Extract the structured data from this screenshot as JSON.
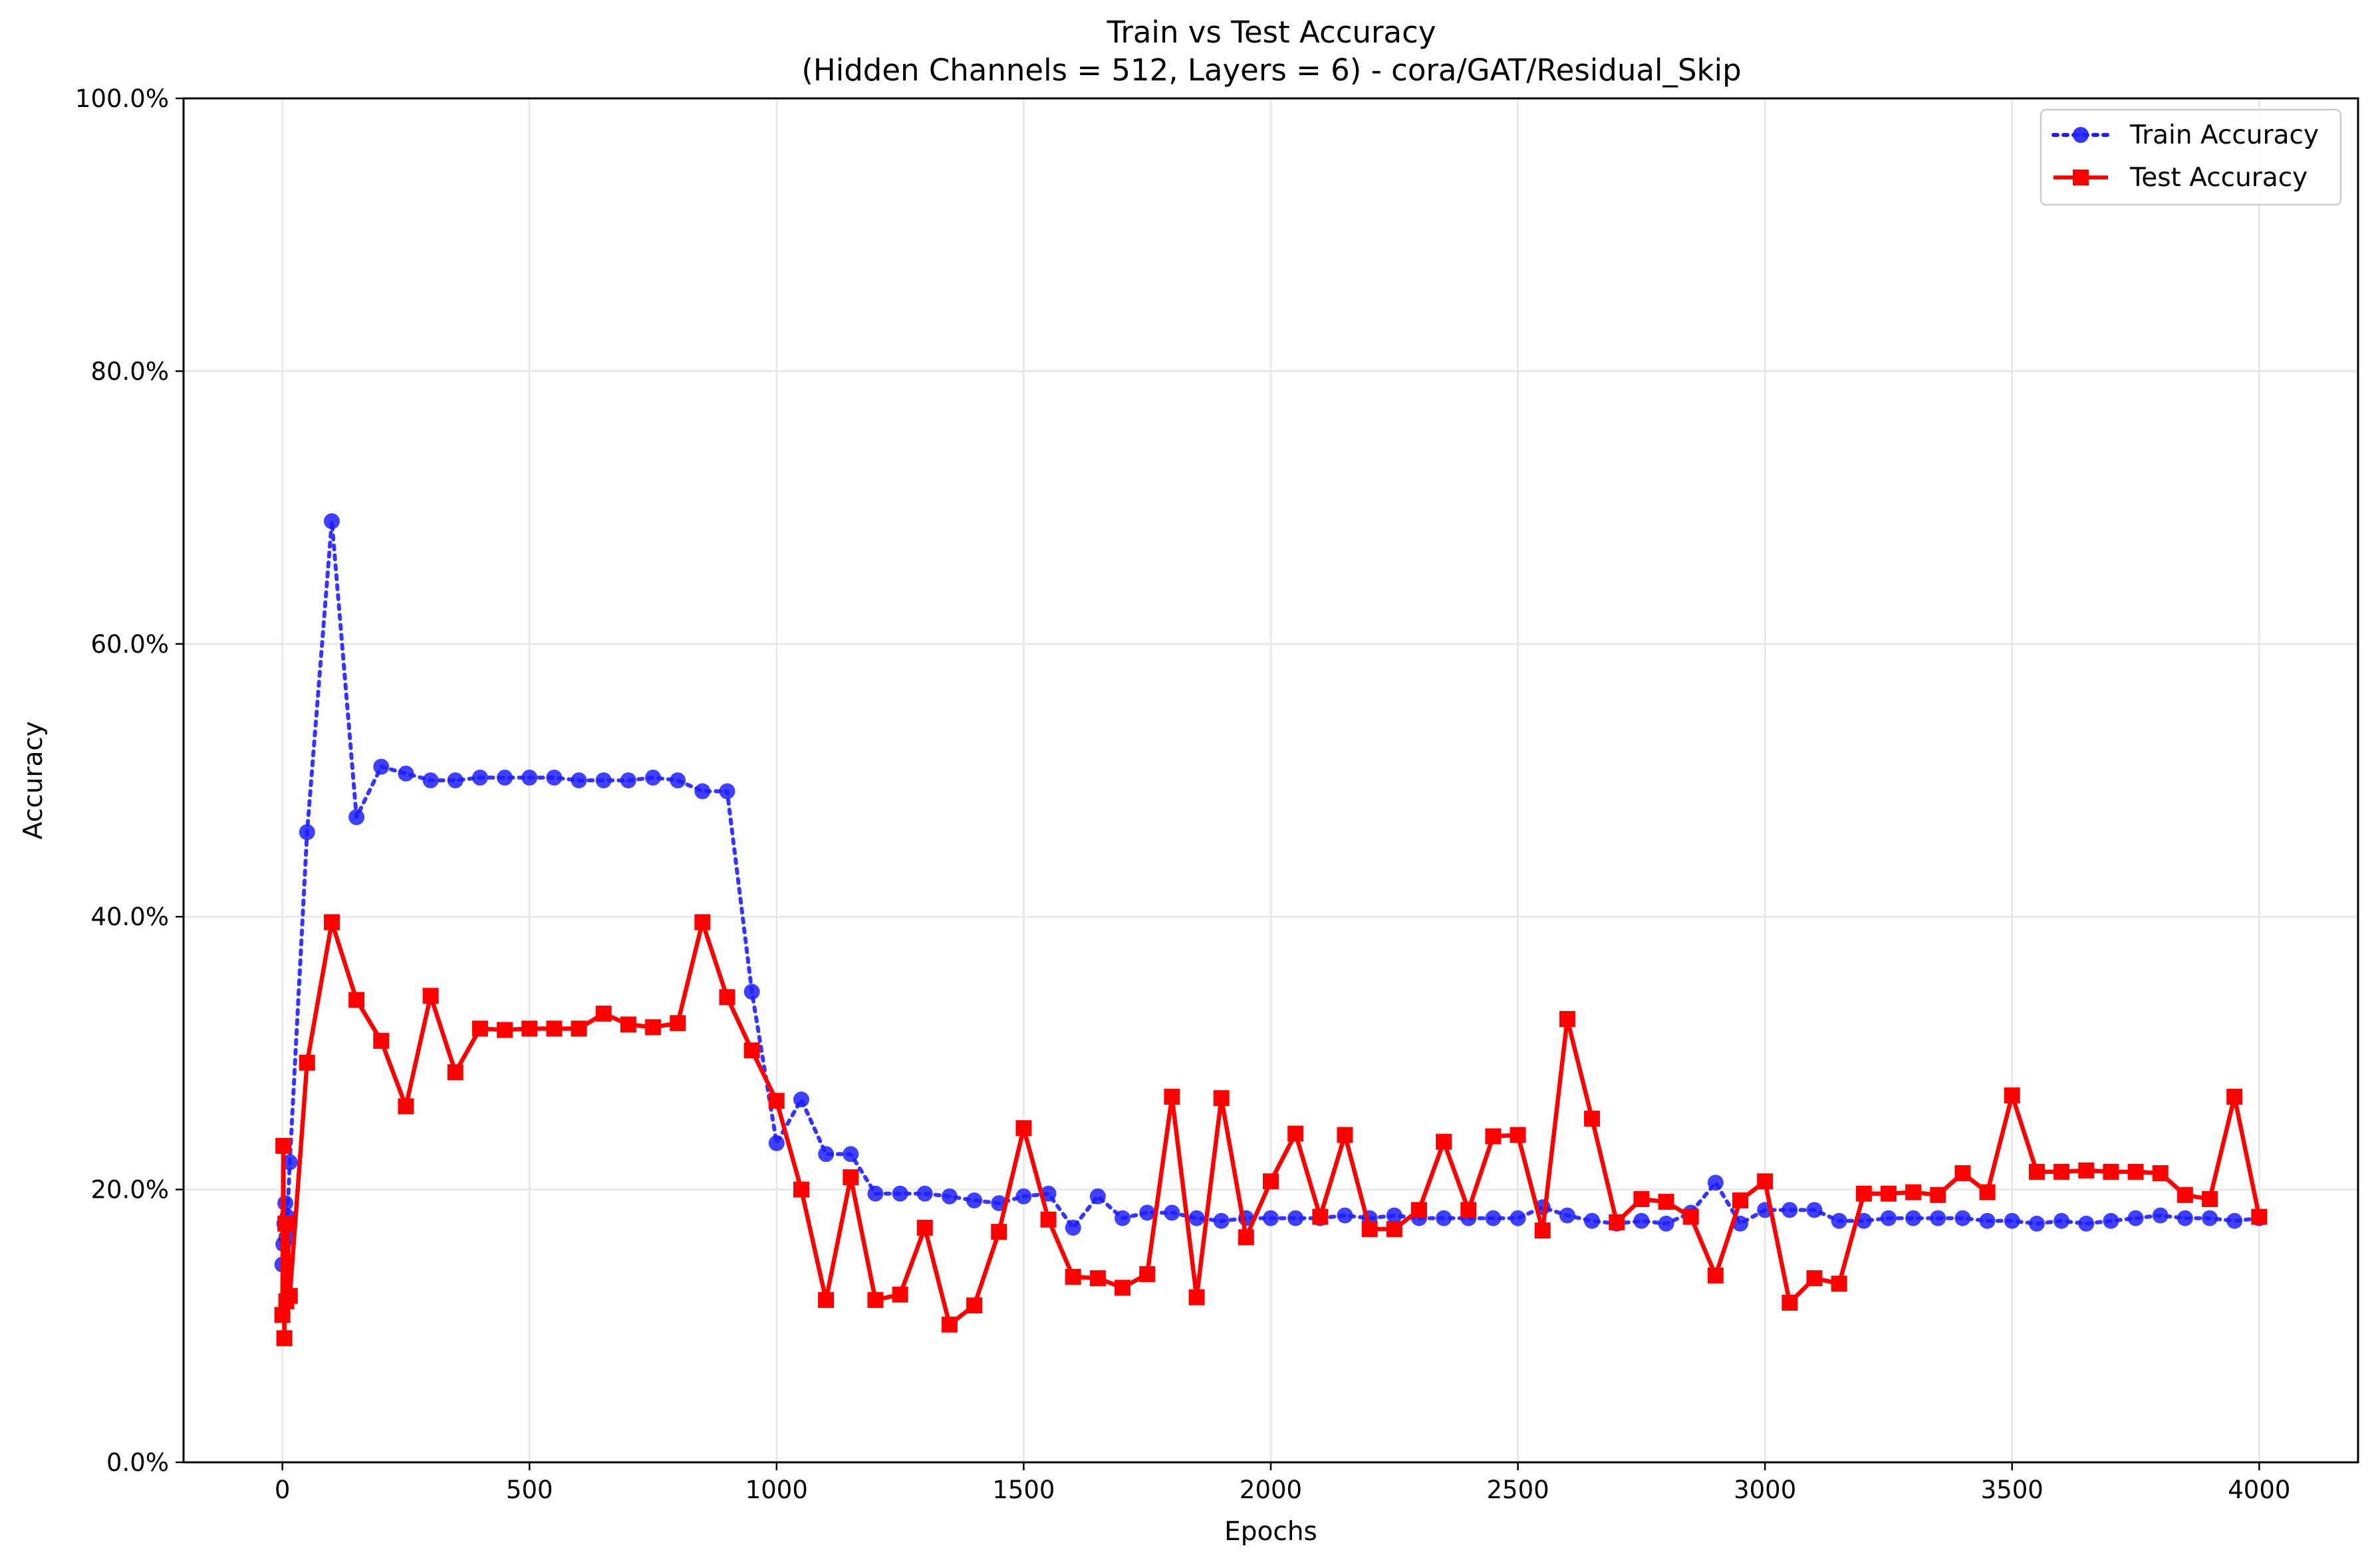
{
  "chart_data": {
    "type": "line",
    "title": "Train vs Test Accuracy",
    "subtitle": "(Hidden Channels = 512, Layers = 6) - cora/GAT/Residual_Skip",
    "xlabel": "Epochs",
    "ylabel": "Accuracy",
    "xlim": [
      -200,
      4200
    ],
    "ylim": [
      0,
      100
    ],
    "x_ticks": [
      0,
      500,
      1000,
      1500,
      2000,
      2500,
      3000,
      3500,
      4000
    ],
    "x_tick_labels": [
      "0",
      "500",
      "1000",
      "1500",
      "2000",
      "2500",
      "3000",
      "3500",
      "4000"
    ],
    "y_ticks": [
      0,
      20,
      40,
      60,
      80,
      100
    ],
    "y_tick_labels": [
      "0.0%",
      "20.0%",
      "40.0%",
      "60.0%",
      "80.0%",
      "100.0%"
    ],
    "grid": true,
    "legend_position": "top-right",
    "x": [
      0,
      2,
      4,
      6,
      8,
      10,
      15,
      50,
      100,
      150,
      200,
      250,
      300,
      350,
      400,
      450,
      500,
      550,
      600,
      650,
      700,
      750,
      800,
      850,
      900,
      950,
      1000,
      1050,
      1100,
      1150,
      1200,
      1250,
      1300,
      1350,
      1400,
      1450,
      1500,
      1550,
      1600,
      1650,
      1700,
      1750,
      1800,
      1850,
      1900,
      1950,
      2000,
      2050,
      2100,
      2150,
      2200,
      2250,
      2300,
      2350,
      2400,
      2450,
      2500,
      2550,
      2600,
      2650,
      2700,
      2750,
      2800,
      2850,
      2900,
      2950,
      3000,
      3050,
      3100,
      3150,
      3200,
      3250,
      3300,
      3350,
      3400,
      3450,
      3500,
      3550,
      3600,
      3650,
      3700,
      3750,
      3800,
      3850,
      3900,
      3950,
      4000
    ],
    "series": [
      {
        "name": "Train Accuracy",
        "color": "#1f1fff",
        "line_style": "dotted",
        "marker": "circle",
        "values": [
          14.5,
          16.0,
          17.5,
          19.0,
          16.5,
          18.0,
          22.0,
          46.2,
          69.0,
          47.3,
          51.0,
          50.5,
          50.0,
          50.0,
          50.2,
          50.2,
          50.2,
          50.2,
          50.0,
          50.0,
          50.0,
          50.2,
          50.0,
          49.2,
          49.2,
          34.5,
          23.4,
          26.6,
          22.6,
          22.6,
          19.7,
          19.7,
          19.7,
          19.5,
          19.2,
          19.0,
          19.5,
          19.7,
          17.2,
          19.5,
          17.9,
          18.3,
          18.3,
          17.9,
          17.7,
          17.9,
          17.9,
          17.9,
          17.9,
          18.1,
          17.9,
          18.1,
          17.9,
          17.9,
          17.9,
          17.9,
          17.9,
          18.7,
          18.1,
          17.7,
          17.5,
          17.7,
          17.5,
          18.3,
          20.5,
          17.5,
          18.5,
          18.5,
          18.5,
          17.7,
          17.7,
          17.9,
          17.9,
          17.9,
          17.9,
          17.7,
          17.7,
          17.5,
          17.7,
          17.5,
          17.7,
          17.9,
          18.1,
          17.9,
          17.9,
          17.7,
          17.9
        ]
      },
      {
        "name": "Test Accuracy",
        "color": "#ff0000",
        "line_style": "solid",
        "marker": "square",
        "values": [
          10.8,
          23.2,
          9.1,
          17.5,
          11.8,
          17.5,
          12.2,
          29.3,
          39.6,
          33.9,
          30.9,
          26.1,
          34.2,
          28.6,
          31.8,
          31.7,
          31.8,
          31.8,
          31.8,
          32.9,
          32.1,
          31.9,
          32.2,
          39.6,
          34.1,
          30.2,
          26.5,
          20.0,
          11.9,
          20.9,
          11.9,
          12.3,
          17.2,
          10.1,
          11.5,
          16.9,
          24.5,
          17.8,
          13.6,
          13.5,
          12.8,
          13.8,
          26.8,
          12.1,
          26.7,
          16.5,
          20.6,
          24.1,
          18.0,
          24.0,
          17.1,
          17.1,
          18.5,
          23.5,
          18.5,
          23.9,
          24.0,
          17.0,
          32.5,
          25.2,
          17.6,
          19.3,
          19.1,
          18.0,
          13.7,
          19.2,
          20.6,
          11.7,
          13.5,
          13.1,
          19.7,
          19.7,
          19.8,
          19.6,
          21.2,
          19.8,
          26.9,
          21.3,
          21.3,
          21.4,
          21.3,
          21.3,
          21.2,
          19.6,
          19.3,
          26.8,
          18.0
        ]
      }
    ]
  }
}
